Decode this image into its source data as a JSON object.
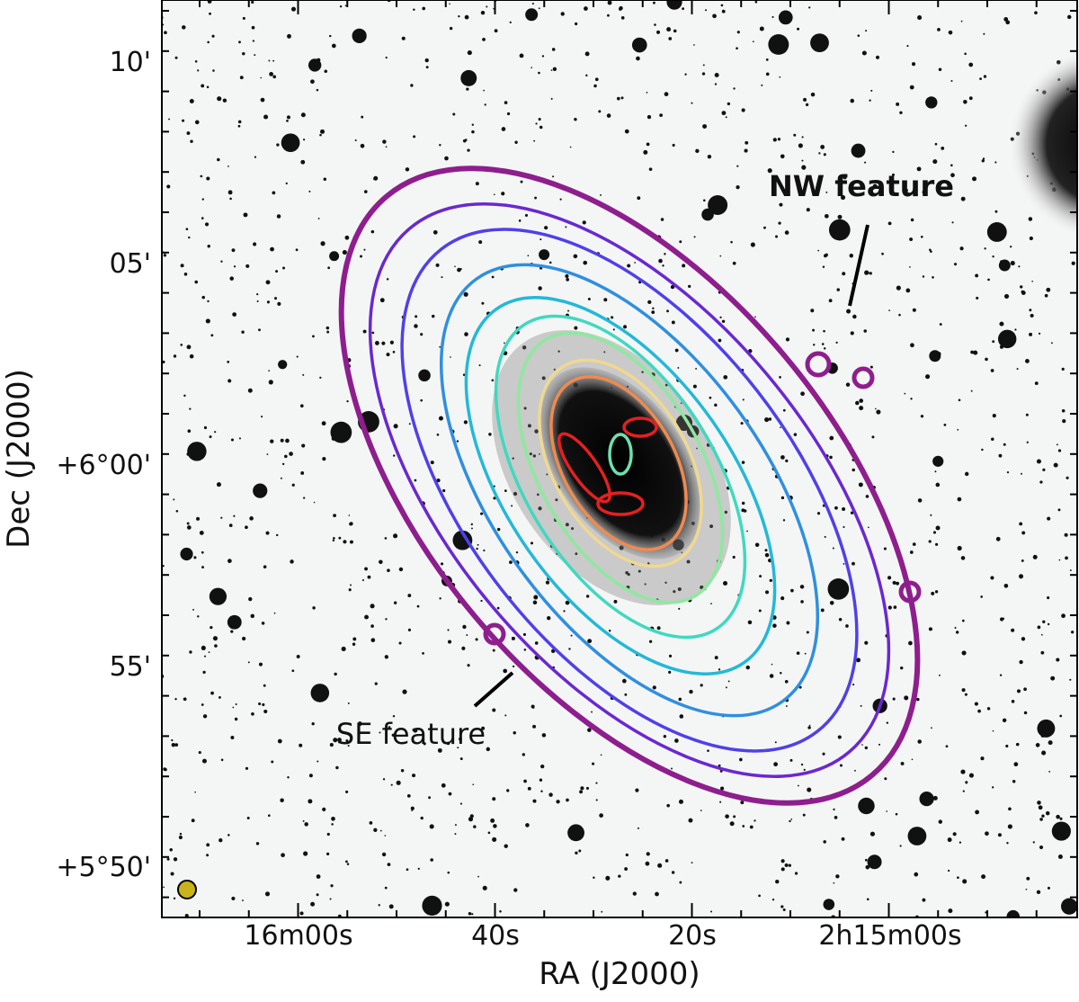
{
  "figure": {
    "xlabel": "RA (J2000)",
    "ylabel": "Dec (J2000)",
    "xtick_labels": [
      "16m00s",
      "40s",
      "20s",
      "2h15m00s"
    ],
    "ytick_labels": [
      "10'",
      "05'",
      "+6°00'",
      "55'",
      "+5°50'"
    ],
    "annotations": [
      "NW feature",
      "SE feature"
    ]
  }
}
